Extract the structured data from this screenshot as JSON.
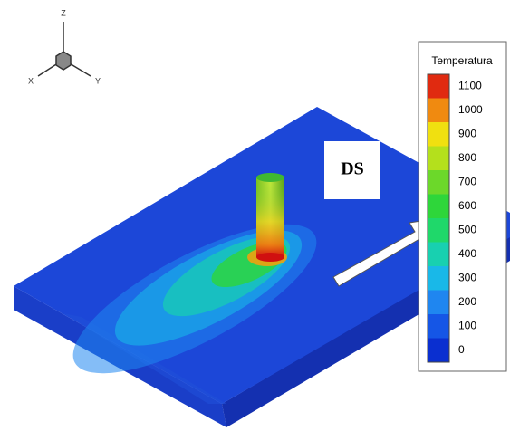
{
  "axes": {
    "z": "Z",
    "x": "X",
    "y": "Y"
  },
  "annotation": "DS",
  "legend": {
    "title": "Temperatura",
    "ticks": [
      0,
      100,
      200,
      300,
      400,
      500,
      600,
      700,
      800,
      900,
      1000,
      1100
    ],
    "colors": [
      "#0a2fd0",
      "#1556e6",
      "#1f86f0",
      "#19b8e8",
      "#18d0b0",
      "#1fd86a",
      "#2ed63a",
      "#6cd82a",
      "#b4e01c",
      "#f0e010",
      "#f08a10",
      "#e02a10"
    ]
  }
}
